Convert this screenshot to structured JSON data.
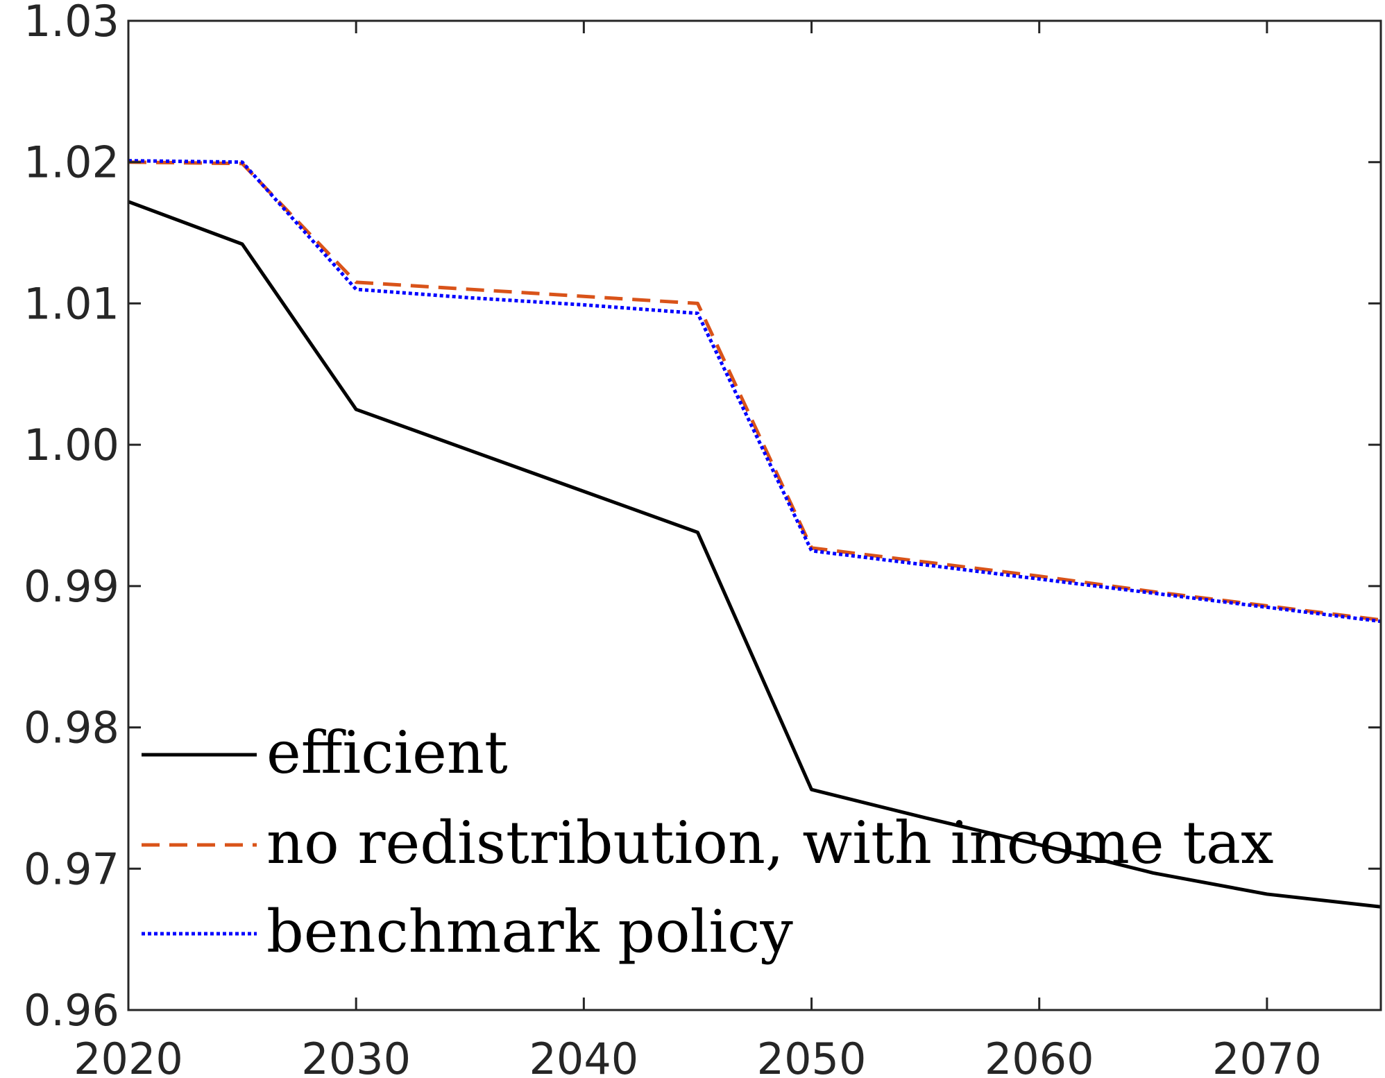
{
  "chart_data": {
    "type": "line",
    "title": "",
    "xlabel": "",
    "ylabel": "",
    "xlim": [
      2020,
      2075
    ],
    "ylim": [
      0.96,
      1.03
    ],
    "x_ticks": [
      2020,
      2030,
      2040,
      2050,
      2060,
      2070
    ],
    "x_tick_labels": [
      "2020",
      "2030",
      "2040",
      "2050",
      "2060",
      "2070"
    ],
    "y_ticks": [
      0.96,
      0.97,
      0.98,
      0.99,
      1.0,
      1.01,
      1.02,
      1.03
    ],
    "y_tick_labels": [
      "0.96",
      "0.97",
      "0.98",
      "0.99",
      "1.00",
      "1.01",
      "1.02",
      "1.03"
    ],
    "grid": false,
    "legend_position": "bottom-left",
    "x": [
      2020,
      2025,
      2030,
      2035,
      2040,
      2045,
      2050,
      2055,
      2060,
      2065,
      2070,
      2075
    ],
    "series": [
      {
        "name": "efficient",
        "color": "#000000",
        "style": "solid",
        "values": [
          1.0172,
          1.0142,
          1.0025,
          0.9996,
          0.9967,
          0.9938,
          0.9756,
          0.9736,
          0.9717,
          0.9697,
          0.9682,
          0.9673
        ]
      },
      {
        "name": "no redistribution, with income tax",
        "color": "#D95319",
        "style": "dashed",
        "values": [
          1.02,
          1.0199,
          1.0115,
          1.011,
          1.0105,
          1.01,
          0.9927,
          0.9917,
          0.9907,
          0.9896,
          0.9886,
          0.9876
        ]
      },
      {
        "name": "benchmark policy",
        "color": "#0000FF",
        "style": "dotted",
        "values": [
          1.0201,
          1.02,
          1.011,
          1.0104,
          1.0099,
          1.0093,
          0.9925,
          0.9915,
          0.9905,
          0.9895,
          0.9885,
          0.9875
        ]
      }
    ]
  }
}
